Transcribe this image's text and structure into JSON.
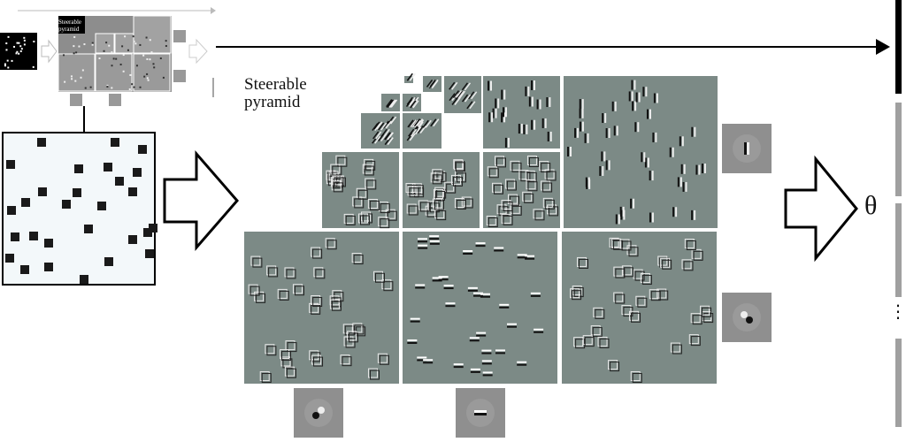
{
  "diagram": {
    "label_steerable": "Steerable",
    "label_pyramid": "pyramid",
    "inset_label_line1": "Steerable",
    "inset_label_line2": "pyramid",
    "output_symbol": "θ",
    "ellipsis": "⋮"
  },
  "colors": {
    "subband_gray": "#7c8a86",
    "input_bg": "#f3f8fa",
    "square_fill": "#1a1a1a",
    "arrow_stroke": "#000000",
    "axis_gray": "#a0a0a0",
    "feature_black": "#000000"
  },
  "icons": {
    "input_arrow": "hollow-right-arrow",
    "output_arrow": "hollow-right-arrow",
    "top_arrow": "solid-line-right-arrow"
  }
}
